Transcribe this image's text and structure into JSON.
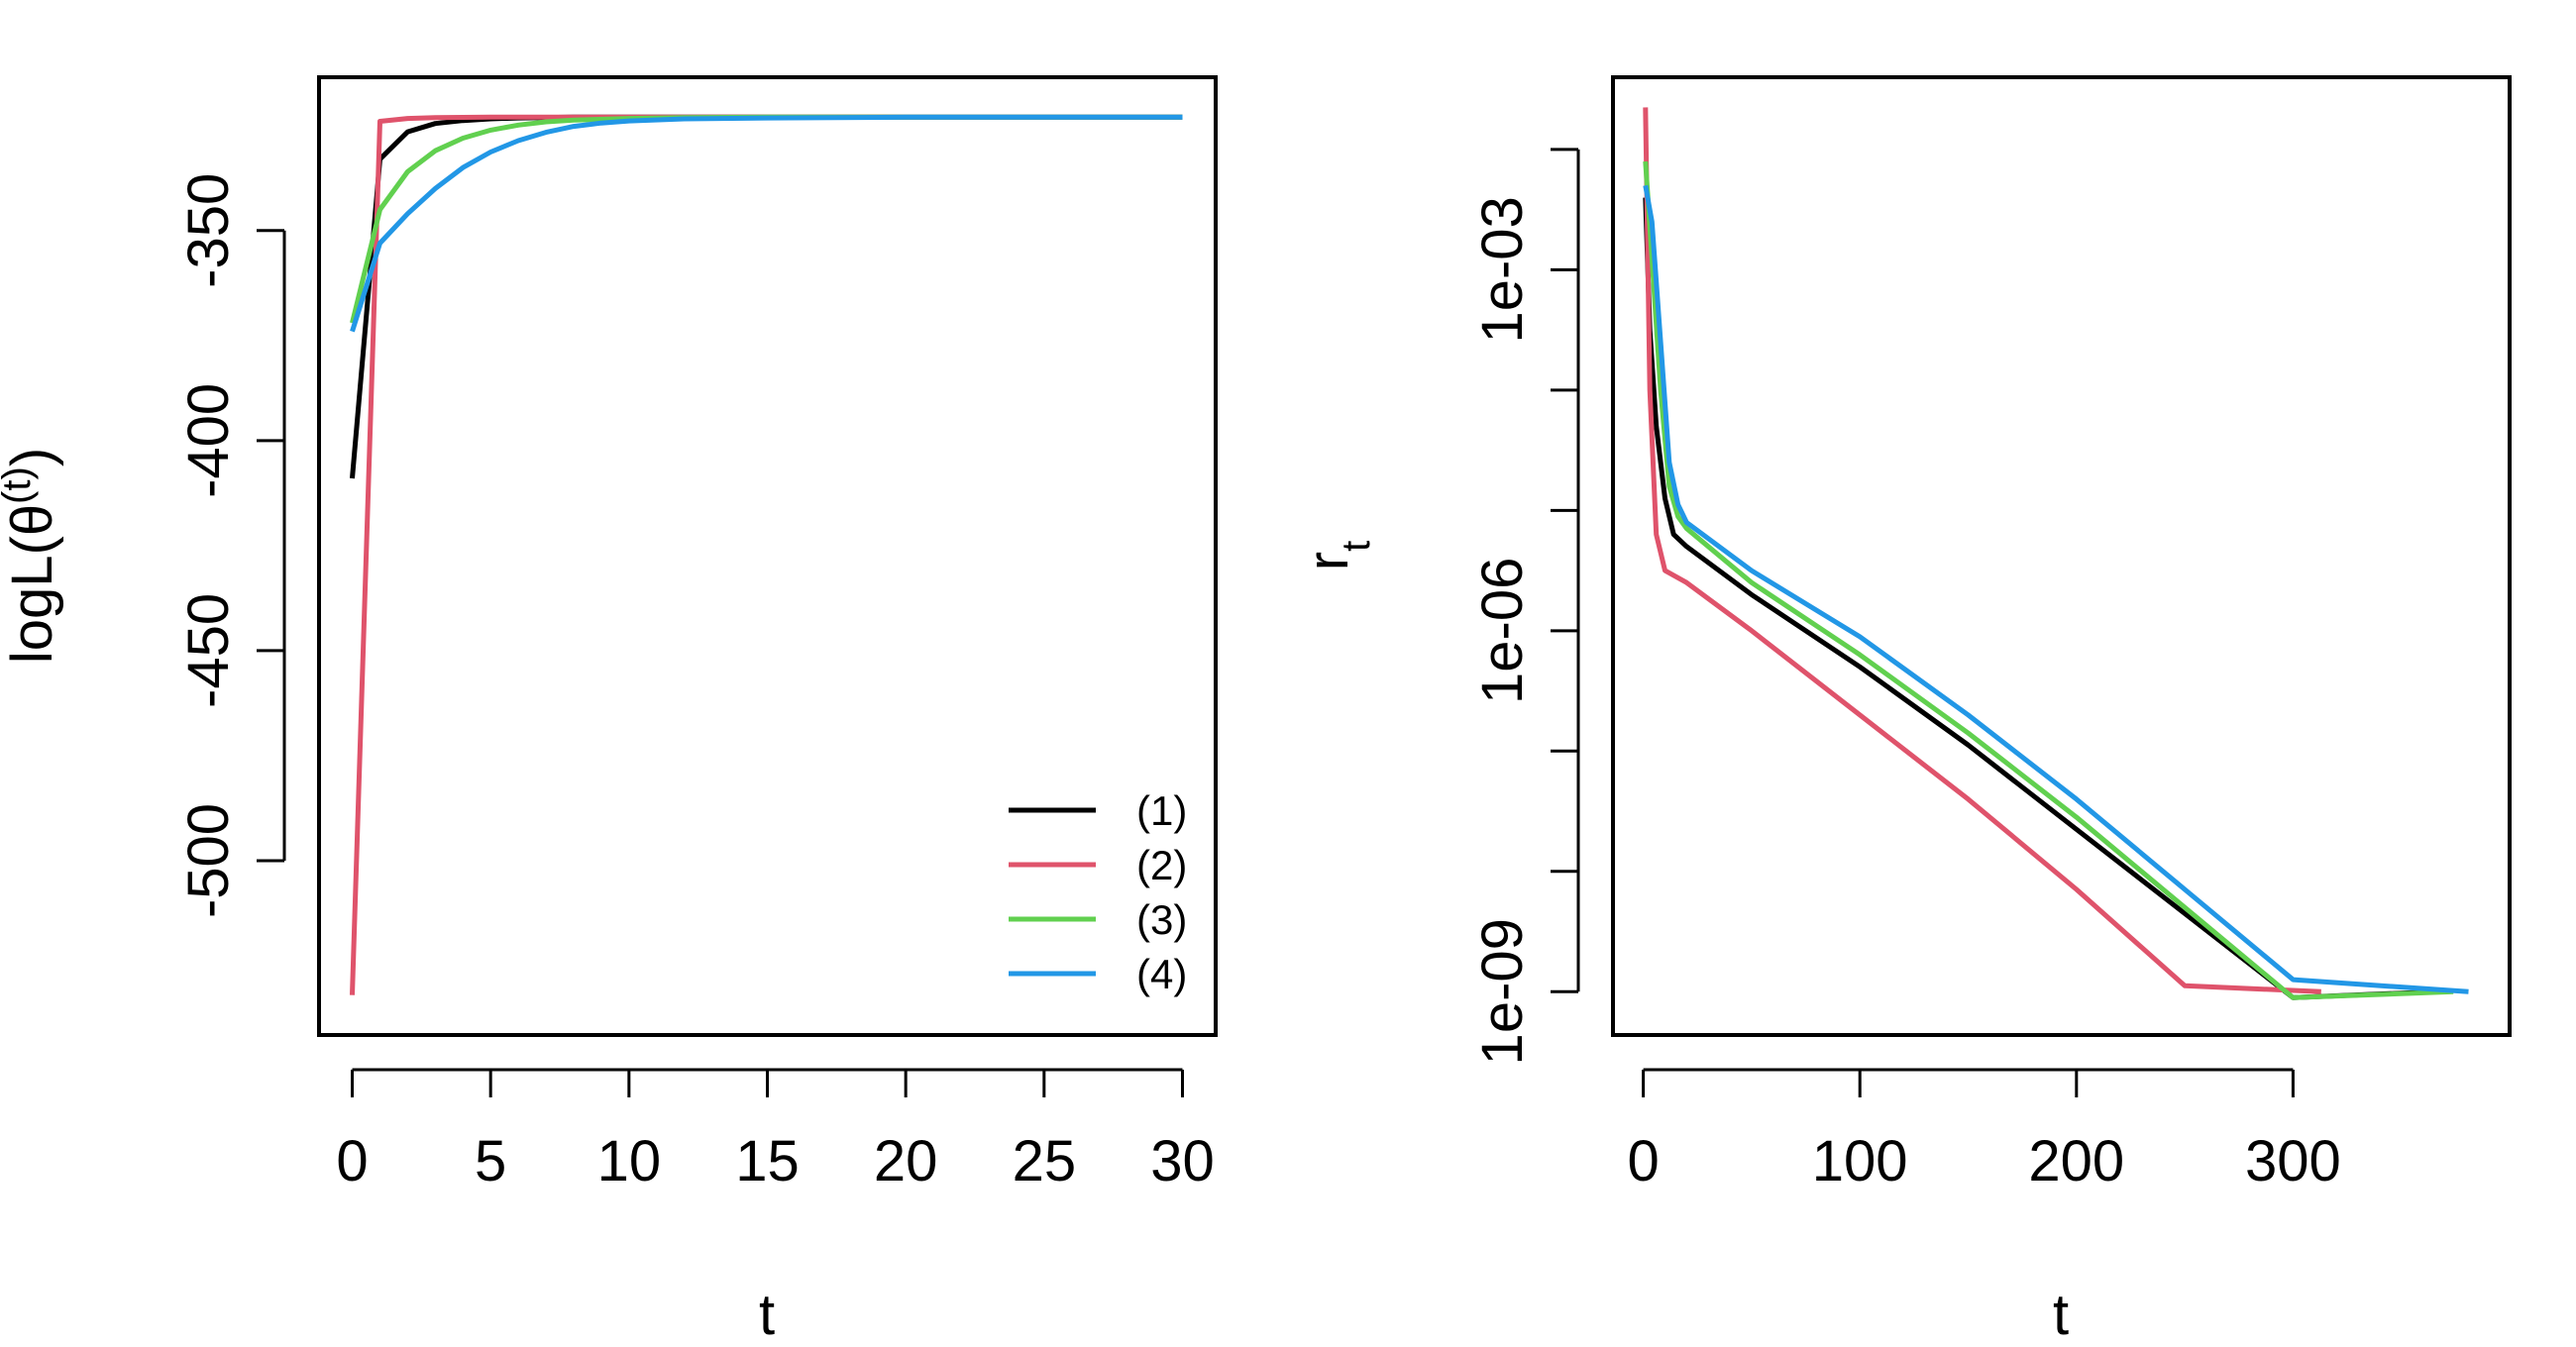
{
  "colors": {
    "series_1": "#000000",
    "series_2": "#DF536B",
    "series_3": "#61D04F",
    "series_4": "#2297E6"
  },
  "chart_data": [
    {
      "type": "line",
      "xlabel": "t",
      "ylabel": "logL(θ^(t))",
      "xlim": [
        -1.2,
        31.2
      ],
      "ylim": [
        -541.5,
        -313.5
      ],
      "x_ticks": [
        "0",
        "5",
        "10",
        "15",
        "20",
        "25",
        "30"
      ],
      "y_ticks": [
        "-350",
        "-400",
        "-450",
        "-500"
      ],
      "y_scale": "linear",
      "grid": false,
      "legend_position": "bottom-right",
      "legend": [
        "(1)",
        "(2)",
        "(3)",
        "(4)"
      ],
      "series": [
        {
          "name": "(1)",
          "x": [
            0,
            1,
            2,
            3,
            4,
            5,
            6,
            8,
            10,
            15,
            20,
            25,
            30
          ],
          "values": [
            -409,
            -333,
            -326.5,
            -324.5,
            -323.8,
            -323.4,
            -323.2,
            -323,
            -323,
            -323,
            -323,
            -323,
            -323
          ]
        },
        {
          "name": "(2)",
          "x": [
            0,
            1,
            2,
            3,
            5,
            10,
            20,
            30
          ],
          "values": [
            -532,
            -324,
            -323.3,
            -323.1,
            -323,
            -323,
            -323,
            -323
          ]
        },
        {
          "name": "(3)",
          "x": [
            0,
            1,
            2,
            3,
            4,
            5,
            6,
            7,
            8,
            10,
            12,
            15,
            20,
            30
          ],
          "values": [
            -372,
            -345,
            -336,
            -331,
            -328,
            -326.1,
            -324.9,
            -324.1,
            -323.7,
            -323.3,
            -323.1,
            -323,
            -323,
            -323
          ]
        },
        {
          "name": "(4)",
          "x": [
            0,
            1,
            2,
            3,
            4,
            5,
            6,
            7,
            8,
            9,
            10,
            12,
            15,
            20,
            30
          ],
          "values": [
            -374,
            -353,
            -346,
            -340,
            -335,
            -331.3,
            -328.6,
            -326.6,
            -325.2,
            -324.4,
            -323.9,
            -323.4,
            -323.2,
            -323,
            -323
          ]
        }
      ]
    },
    {
      "type": "line",
      "xlabel": "t",
      "ylabel": "r_t",
      "xlim": [
        -14,
        400
      ],
      "ylim": [
        -9.36,
        -1.4
      ],
      "y_scale": "log10",
      "x_ticks": [
        "0",
        "100",
        "200",
        "300"
      ],
      "y_ticks": [
        "1e-03",
        "1e-06",
        "1e-09"
      ],
      "grid": false,
      "series": [
        {
          "name": "(1)",
          "x": [
            1,
            3,
            6,
            10,
            14,
            20,
            50,
            100,
            150,
            200,
            250,
            300,
            366
          ],
          "values": [
            -2.4,
            -3.5,
            -4.3,
            -4.9,
            -5.2,
            -5.3,
            -5.7,
            -6.3,
            -6.95,
            -7.65,
            -8.35,
            -9.05,
            -9.0
          ]
        },
        {
          "name": "(2)",
          "x": [
            1,
            3,
            6,
            10,
            20,
            50,
            100,
            150,
            200,
            250,
            313
          ],
          "values": [
            -1.65,
            -4,
            -5.2,
            -5.5,
            -5.6,
            -6,
            -6.7,
            -7.4,
            -8.15,
            -8.95,
            -9.0
          ]
        },
        {
          "name": "(3)",
          "x": [
            1,
            4,
            8,
            12,
            16,
            20,
            50,
            100,
            150,
            200,
            250,
            300,
            374
          ],
          "values": [
            -2.1,
            -2.9,
            -4,
            -4.8,
            -5.05,
            -5.15,
            -5.6,
            -6.2,
            -6.85,
            -7.55,
            -8.3,
            -9.05,
            -9.0
          ]
        },
        {
          "name": "(4)",
          "x": [
            1,
            4,
            8,
            12,
            16,
            20,
            50,
            100,
            150,
            200,
            250,
            300,
            381
          ],
          "values": [
            -2.3,
            -2.6,
            -3.6,
            -4.6,
            -4.95,
            -5.1,
            -5.5,
            -6.05,
            -6.7,
            -7.4,
            -8.15,
            -8.9,
            -9.0
          ]
        }
      ]
    }
  ]
}
